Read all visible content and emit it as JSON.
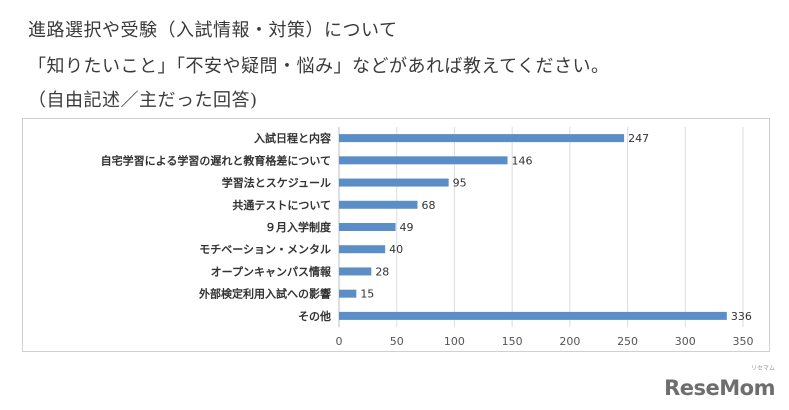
{
  "header": {
    "line1": "進路選択や受験（入試情報・対策）について",
    "line2": "「知りたいこと」「不安や疑問・悩み」などがあれば教えてください。",
    "line3": "（自由記述／主だった回答)"
  },
  "chart_data": {
    "type": "bar",
    "orientation": "horizontal",
    "categories": [
      "入試日程と内容",
      "自宅学習による学習の遅れと教育格差について",
      "学習法とスケジュール",
      "共通テストについて",
      "９月入学制度",
      "モチベーション・メンタル",
      "オープンキャンパス情報",
      "外部検定利用入試への影響",
      "その他"
    ],
    "values": [
      247,
      146,
      95,
      68,
      49,
      40,
      28,
      15,
      336
    ],
    "xlim": [
      0,
      350
    ],
    "xticks": [
      "0",
      "50",
      "100",
      "150",
      "200",
      "250",
      "300",
      "350"
    ],
    "title": "",
    "xlabel": "",
    "ylabel": "",
    "grid": true,
    "bar_color": "#5b8ec6"
  },
  "logo": {
    "text": "ReseMom",
    "sub": "リセマム"
  }
}
